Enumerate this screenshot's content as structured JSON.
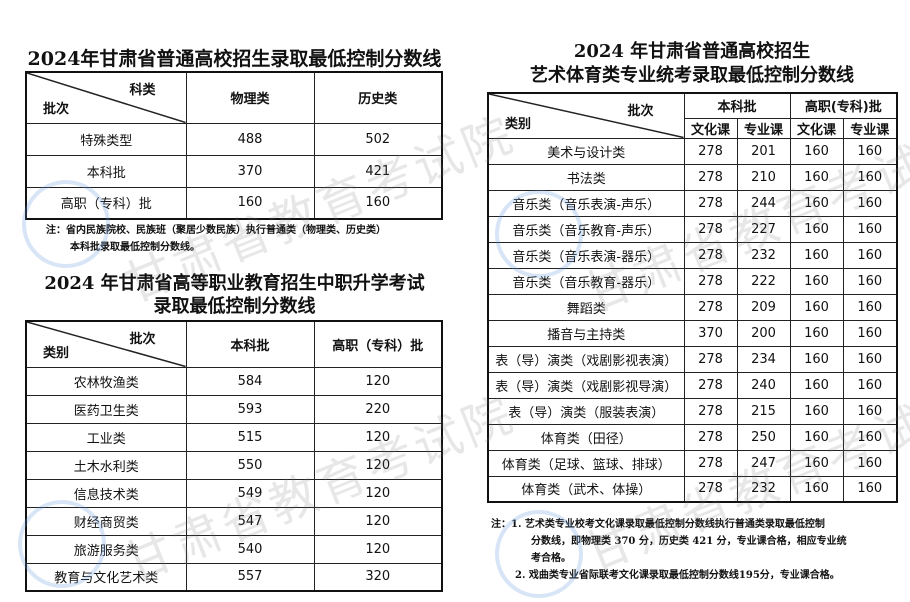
{
  "table1": {
    "title": "2024年甘肃省普通高校招生录取最低控制分数线",
    "corner_top": "科类",
    "corner_bottom": "批次",
    "columns": [
      "物理类",
      "历史类"
    ],
    "rows": [
      [
        "特殊类型",
        "488",
        "502"
      ],
      [
        "本科批",
        "370",
        "421"
      ],
      [
        "高职（专科）批",
        "160",
        "160"
      ]
    ],
    "note_line1": "注：省内民族院校、民族班（聚居少数民族）执行普通类（物理类、历史类）",
    "note_line2": "本科批录取最低控制分数线。"
  },
  "table2": {
    "title_line1": "2024 年甘肃省高等职业教育招生中职升学考试",
    "title_line2": "录取最低控制分数线",
    "corner_top": "批次",
    "corner_bottom": "类别",
    "columns": [
      "本科批",
      "高职（专科）批"
    ],
    "rows": [
      [
        "农林牧渔类",
        "584",
        "120"
      ],
      [
        "医药卫生类",
        "593",
        "220"
      ],
      [
        "工业类",
        "515",
        "120"
      ],
      [
        "土木水利类",
        "550",
        "120"
      ],
      [
        "信息技术类",
        "549",
        "120"
      ],
      [
        "财经商贸类",
        "547",
        "120"
      ],
      [
        "旅游服务类",
        "540",
        "120"
      ],
      [
        "教育与文化艺术类",
        "557",
        "320"
      ]
    ]
  },
  "table3": {
    "title_line1": "2024 年甘肃省普通高校招生",
    "title_line2": "艺术体育类专业统考录取最低控制分数线",
    "corner_top": "批次",
    "corner_bottom": "类别",
    "groups": [
      "本科批",
      "高职(专科)批"
    ],
    "subcolumns": [
      "文化课",
      "专业课",
      "文化课",
      "专业课"
    ],
    "rows": [
      [
        "美术与设计类",
        "278",
        "201",
        "160",
        "160"
      ],
      [
        "书法类",
        "278",
        "210",
        "160",
        "160"
      ],
      [
        "音乐类（音乐表演-声乐）",
        "278",
        "244",
        "160",
        "160"
      ],
      [
        "音乐类（音乐教育-声乐）",
        "278",
        "227",
        "160",
        "160"
      ],
      [
        "音乐类（音乐表演-器乐）",
        "278",
        "232",
        "160",
        "160"
      ],
      [
        "音乐类（音乐教育-器乐）",
        "278",
        "222",
        "160",
        "160"
      ],
      [
        "舞蹈类",
        "278",
        "209",
        "160",
        "160"
      ],
      [
        "播音与主持类",
        "370",
        "200",
        "160",
        "160"
      ],
      [
        "表（导）演类（戏剧影视表演）",
        "278",
        "234",
        "160",
        "160"
      ],
      [
        "表（导）演类（戏剧影视导演）",
        "278",
        "240",
        "160",
        "160"
      ],
      [
        "表（导）演类（服装表演）",
        "278",
        "215",
        "160",
        "160"
      ],
      [
        "体育类（田径）",
        "278",
        "250",
        "160",
        "160"
      ],
      [
        "体育类（足球、篮球、排球）",
        "278",
        "247",
        "160",
        "160"
      ],
      [
        "体育类（武术、体操）",
        "278",
        "232",
        "160",
        "160"
      ]
    ],
    "note_line1": "注：1. 艺术类专业校考文化课录取最低控制分数线执行普通类录取最低控制",
    "note_line2": "分数线，即物理类 370 分，历史类 421 分，专业课合格，相应专业统",
    "note_line3": "考合格。",
    "note_line4": "2. 戏曲类专业省际联考文化课录取最低控制分数线195分，专业课合格。"
  },
  "watermark": "甘肃省教育考试院"
}
